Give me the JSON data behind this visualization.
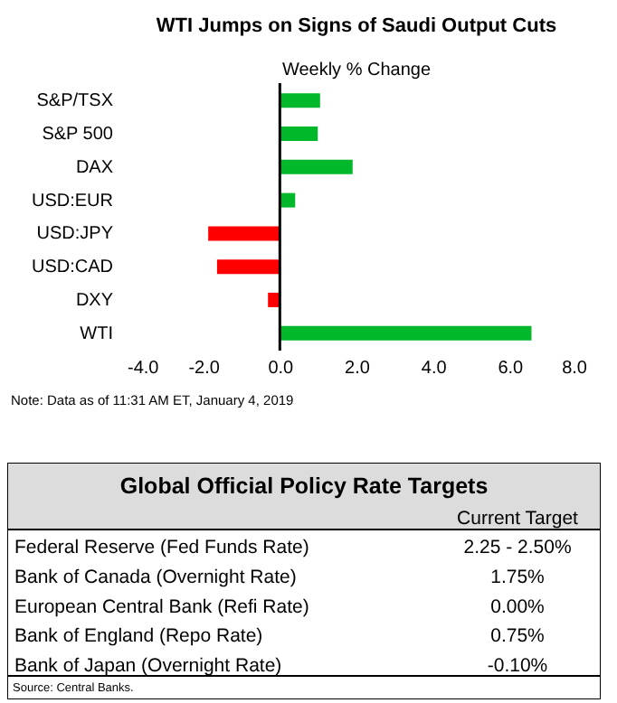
{
  "chart_data": [
    {
      "type": "bar",
      "orientation": "horizontal",
      "title": "WTI Jumps on Signs of Saudi Output Cuts",
      "subtitle": "Weekly % Change",
      "categories": [
        "S&P/TSX",
        "S&P 500",
        "DAX",
        "USD:EUR",
        "USD:JPY",
        "USD:CAD",
        "DXY",
        "WTI"
      ],
      "values": [
        1.05,
        0.99,
        1.9,
        0.4,
        -1.87,
        -1.64,
        -0.31,
        6.57
      ],
      "colors": [
        "#00b82a",
        "#00b82a",
        "#00b82a",
        "#00b82a",
        "#ff0000",
        "#ff0000",
        "#ff0000",
        "#00b82a"
      ],
      "xlim": [
        -4,
        8
      ],
      "xticks": [
        {
          "value": -4,
          "label": "-4.0"
        },
        {
          "value": -2,
          "label": "-2.0"
        },
        {
          "value": 0,
          "label": "0.0"
        },
        {
          "value": 2,
          "label": "2.0"
        },
        {
          "value": 4,
          "label": "4.0"
        },
        {
          "value": 6,
          "label": "6.0"
        },
        {
          "value": 8,
          "label": "8.0"
        }
      ],
      "ref_lines": [
        {
          "axis": "x",
          "value": 0,
          "color": "#000000"
        }
      ],
      "annotations": [
        "Note: Data as of  11:31 AM  ET,  January 4, 2019"
      ]
    },
    {
      "type": "other",
      "title": "Global Official Policy Rate Targets",
      "categories": [
        "Federal Reserve (Fed Funds Rate)",
        "Bank of Canada (Overnight Rate)",
        "European Central Bank (Refi Rate)",
        "Bank of England (Repo Rate)",
        "Bank of Japan (Overnight Rate)"
      ],
      "value_labels": [
        "2.25 - 2.50%",
        "1.75%",
        "0.00%",
        "0.75%",
        "-0.10%"
      ],
      "annotations": [
        "Current Target",
        "Source: Central Banks."
      ]
    }
  ]
}
